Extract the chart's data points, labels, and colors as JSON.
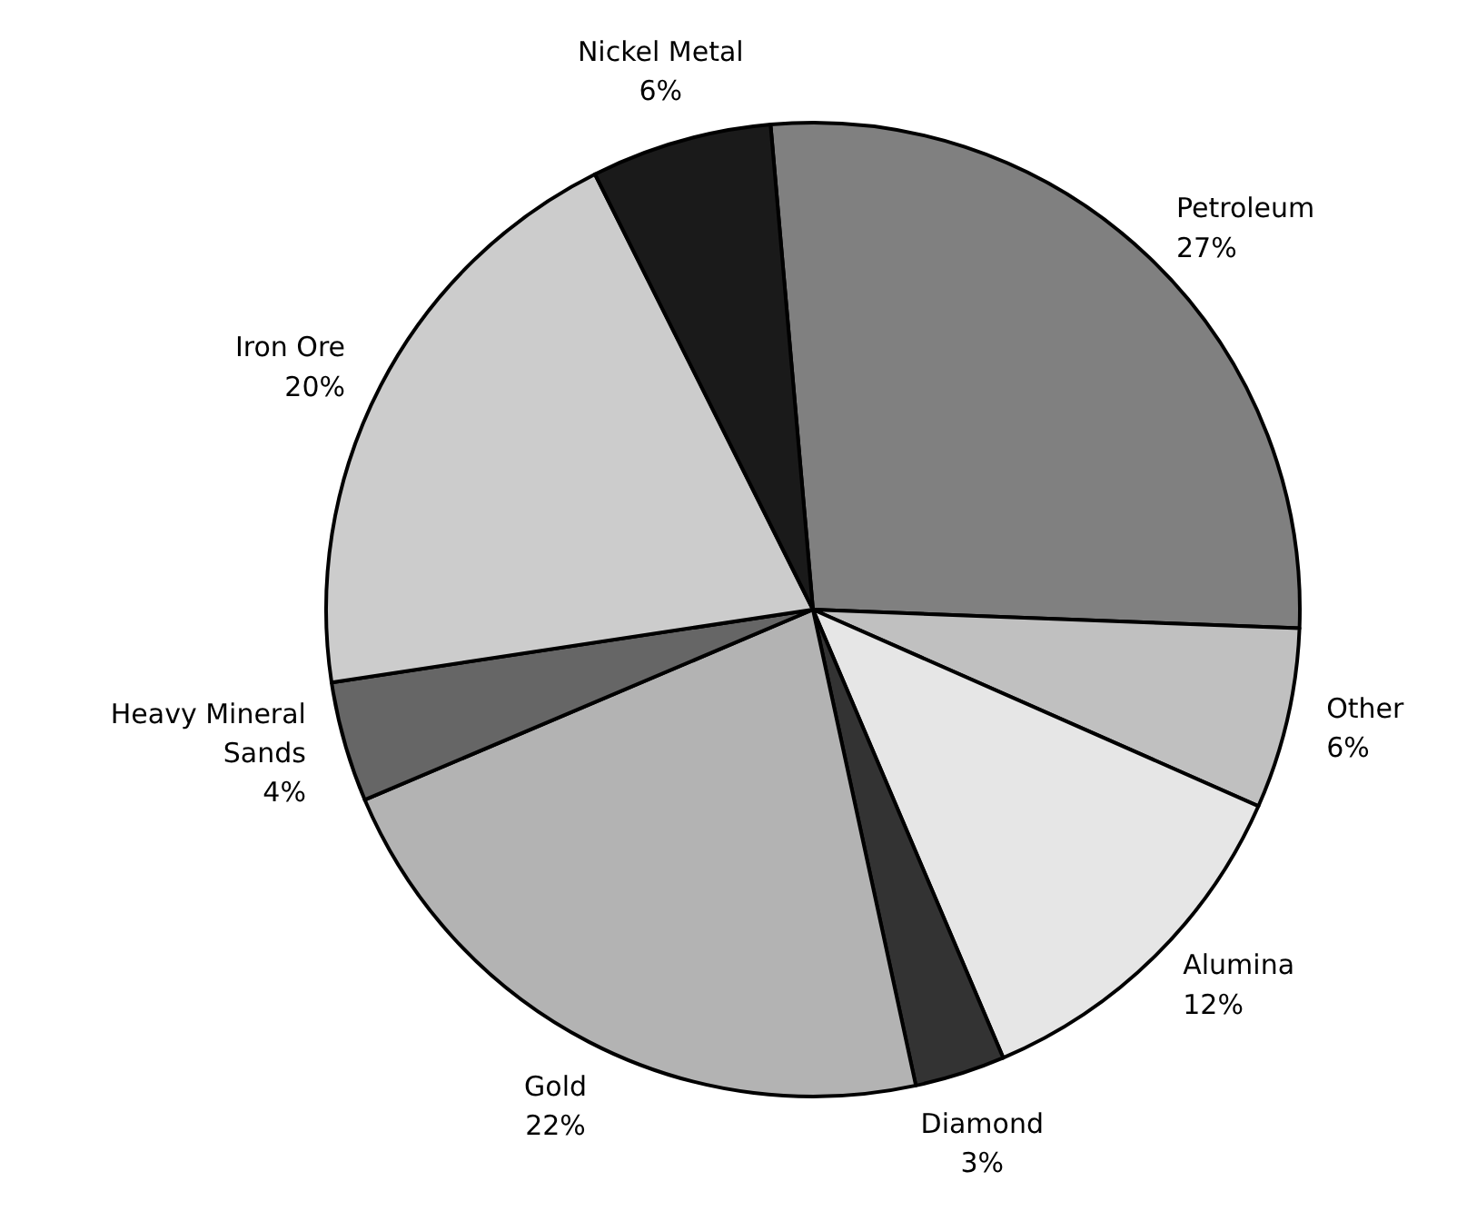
{
  "chart_data": {
    "type": "pie",
    "categories": [
      "Petroleum",
      "Other",
      "Alumina",
      "Diamond",
      "Gold",
      "Heavy Mineral\nSands",
      "Iron Ore",
      "Nickel Metal"
    ],
    "values": [
      27,
      6,
      12,
      3,
      22,
      4,
      20,
      6
    ],
    "value_labels": [
      "27%",
      "6%",
      "12%",
      "3%",
      "22%",
      "4%",
      "20%",
      "6%"
    ],
    "colors": [
      "#808080",
      "#c0c0c0",
      "#e6e6e6",
      "#333333",
      "#b3b3b3",
      "#666666",
      "#cccccc",
      "#1a1a1a"
    ]
  }
}
